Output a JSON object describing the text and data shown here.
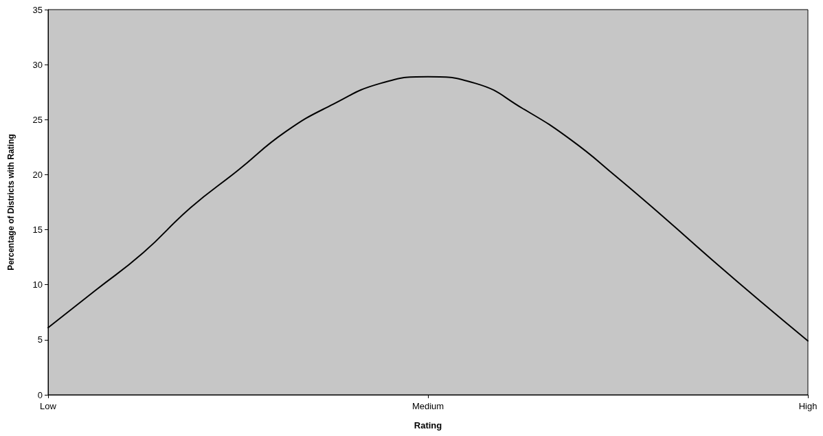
{
  "chart_data": {
    "type": "line",
    "xlabel": "Rating",
    "ylabel": "Percentage of Districts with Rating",
    "categories": [
      "Low",
      null,
      null,
      null,
      null,
      null,
      null,
      null,
      "Medium",
      null,
      null,
      null,
      null,
      null,
      null,
      null,
      "High"
    ],
    "series": [
      {
        "color": "#000000",
        "values": [
          6.1,
          9.5,
          12.9,
          17.0,
          20.4,
          23.9,
          26.4,
          28.3,
          28.9,
          28.3,
          26.0,
          23.2,
          19.7,
          16.0,
          12.2,
          8.5,
          4.9
        ]
      }
    ],
    "ylim": [
      0,
      35
    ],
    "yticks": [
      0,
      5,
      10,
      15,
      20,
      25,
      30,
      35
    ],
    "grid": false,
    "marker": "none",
    "line_style": "solid"
  }
}
